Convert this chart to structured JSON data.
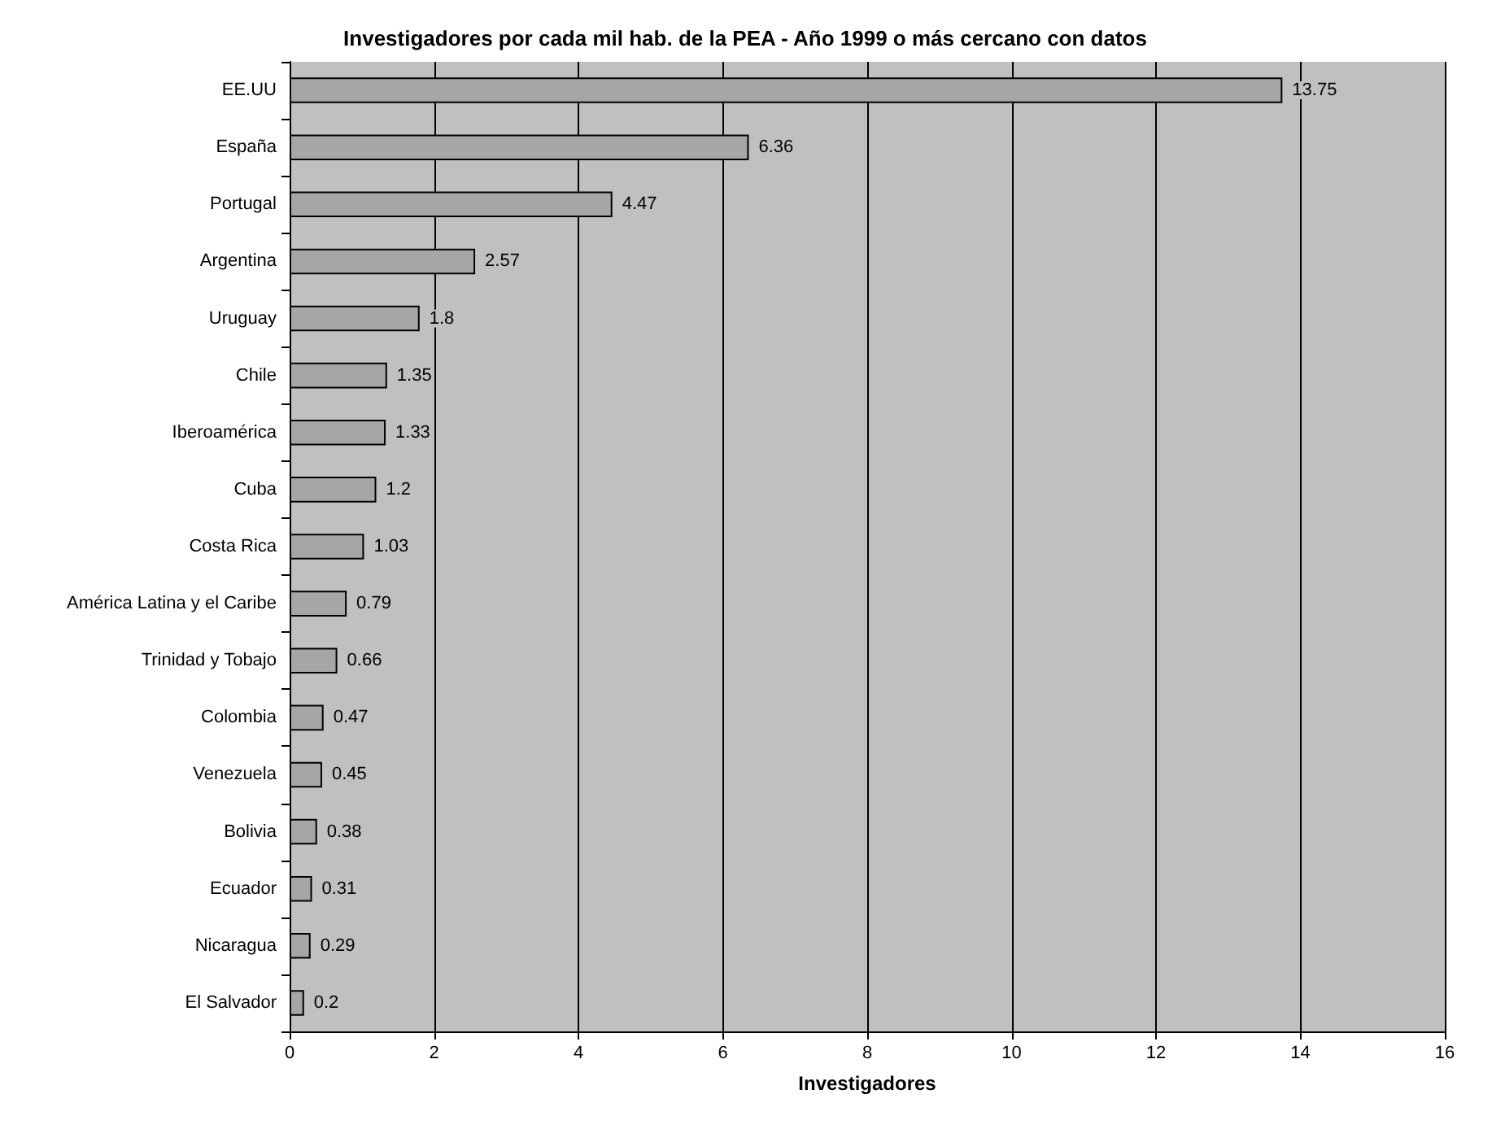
{
  "chart_data": {
    "type": "bar",
    "orientation": "horizontal",
    "title": "Investigadores por cada mil hab. de la PEA - Año 1999 o más cercano con datos",
    "xlabel": "Investigadores",
    "categories": [
      "EE.UU",
      "España",
      "Portugal",
      "Argentina",
      "Uruguay",
      "Chile",
      "Iberoamérica",
      "Cuba",
      "Costa Rica",
      "América Latina y el Caribe",
      "Trinidad y Tobajo",
      "Colombia",
      "Venezuela",
      "Bolivia",
      "Ecuador",
      "Nicaragua",
      "El Salvador"
    ],
    "values": [
      13.75,
      6.36,
      4.47,
      2.57,
      1.8,
      1.35,
      1.33,
      1.2,
      1.03,
      0.79,
      0.66,
      0.47,
      0.45,
      0.38,
      0.31,
      0.29,
      0.2
    ],
    "color": "#a6a6a6",
    "xlim": [
      0,
      16
    ],
    "xticks": [
      0,
      2,
      4,
      6,
      8,
      10,
      12,
      14,
      16
    ],
    "grid": "x",
    "data_labels": true
  }
}
